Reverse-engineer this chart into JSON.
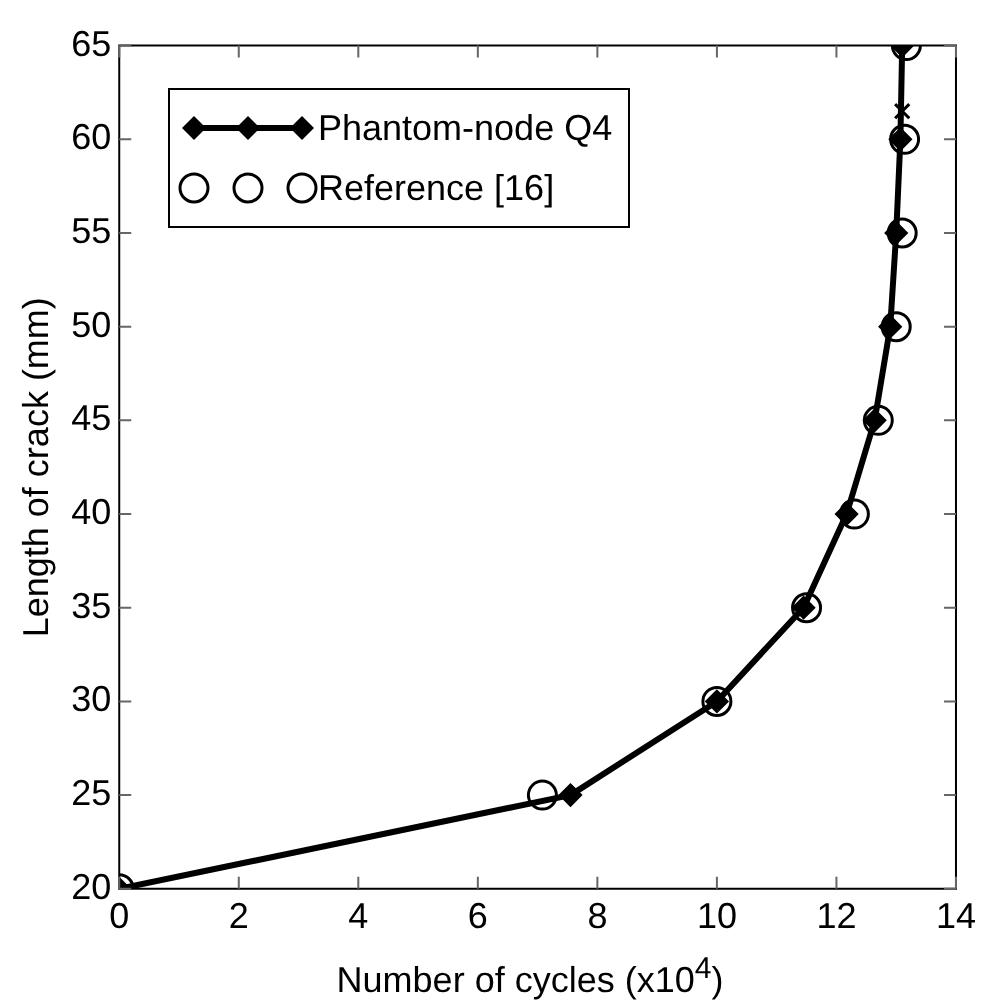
{
  "chart_data": {
    "type": "line",
    "xlabel": "Number of cycles (x10$^{4}$)",
    "ylabel": "Length of crack (mm)",
    "xlim": [
      0,
      14
    ],
    "xticks": [
      0,
      2,
      4,
      6,
      8,
      10,
      12,
      14
    ],
    "ylim": [
      20,
      65
    ],
    "yticks": [
      20,
      25,
      30,
      35,
      40,
      45,
      50,
      55,
      60,
      65
    ],
    "grid": false,
    "legend": "top left",
    "series": [
      {
        "name": "Phantom-node Q4",
        "color": "#000000",
        "marker": "diamond",
        "line_style": "solid",
        "x": [
          0,
          7.55,
          10,
          11.45,
          12.17,
          12.64,
          12.9,
          13.0,
          13.07,
          13.1
        ],
        "values": [
          20,
          25,
          30,
          35,
          40,
          45,
          50,
          55,
          60,
          65
        ]
      },
      {
        "name": "Reference [16]",
        "color": "#000000",
        "type": "scatter",
        "marker": "circle",
        "x": [
          0,
          7.08,
          10,
          11.5,
          12.3,
          12.7,
          13.0,
          13.1,
          13.14,
          13.17
        ],
        "values": [
          20,
          25,
          30,
          35,
          40,
          45,
          50,
          55,
          60,
          65
        ]
      },
      {
        "color": "#000000",
        "type": "scatter",
        "marker": "cross",
        "x": [
          13.1
        ],
        "values": [
          61.5
        ]
      }
    ]
  }
}
